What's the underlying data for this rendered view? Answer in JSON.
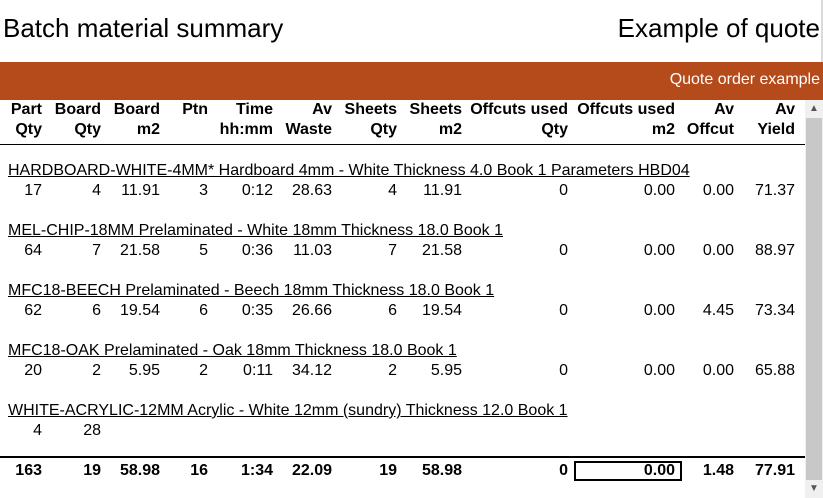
{
  "header": {
    "title": "Batch material summary",
    "right_title": "Example of quote",
    "banner_text": "Quote order example"
  },
  "columns": [
    {
      "line1": "Part",
      "line2": "Qty"
    },
    {
      "line1": "Board",
      "line2": "Qty"
    },
    {
      "line1": "Board",
      "line2": "m2"
    },
    {
      "line1": "Ptn",
      "line2": ""
    },
    {
      "line1": "Time",
      "line2": "hh:mm"
    },
    {
      "line1": "Av",
      "line2": "Waste"
    },
    {
      "line1": "Sheets",
      "line2": "Qty"
    },
    {
      "line1": "Sheets",
      "line2": "m2"
    },
    {
      "line1": "Offcuts used",
      "line2": "Qty"
    },
    {
      "line1": "Offcuts used",
      "line2": "m2"
    },
    {
      "line1": "Av",
      "line2": "Offcut"
    },
    {
      "line1": "Av",
      "line2": "Yield"
    }
  ],
  "groups": [
    {
      "title": "HARDBOARD-WHITE-4MM* Hardboard 4mm - White Thickness   4.0 Book 1 Parameters HBD04",
      "values": [
        "17",
        "4",
        "11.91",
        "3",
        "0:12",
        "28.63",
        "4",
        "11.91",
        "0",
        "0.00",
        "0.00",
        "71.37"
      ]
    },
    {
      "title": "MEL-CHIP-18MM Prelaminated - White 18mm Thickness  18.0 Book 1",
      "values": [
        "64",
        "7",
        "21.58",
        "5",
        "0:36",
        "11.03",
        "7",
        "21.58",
        "0",
        "0.00",
        "0.00",
        "88.97"
      ]
    },
    {
      "title": "MFC18-BEECH Prelaminated - Beech 18mm Thickness  18.0 Book 1",
      "values": [
        "62",
        "6",
        "19.54",
        "6",
        "0:35",
        "26.66",
        "6",
        "19.54",
        "0",
        "0.00",
        "4.45",
        "73.34"
      ]
    },
    {
      "title": "MFC18-OAK Prelaminated - Oak 18mm Thickness  18.0 Book 1",
      "values": [
        "20",
        "2",
        "5.95",
        "2",
        "0:11",
        "34.12",
        "2",
        "5.95",
        "0",
        "0.00",
        "0.00",
        "65.88"
      ]
    },
    {
      "title": "WHITE-ACRYLIC-12MM Acrylic - White 12mm (sundry) Thickness  12.0 Book 1",
      "values": [
        "4",
        "28",
        "",
        "",
        "",
        "",
        "",
        "",
        "",
        "",
        "",
        ""
      ]
    }
  ],
  "totals": [
    "163",
    "19",
    "58.98",
    "16",
    "1:34",
    "22.09",
    "19",
    "58.98",
    "0",
    "0.00",
    "1.48",
    "77.91"
  ],
  "colors": {
    "banner": "#b54a1b"
  }
}
